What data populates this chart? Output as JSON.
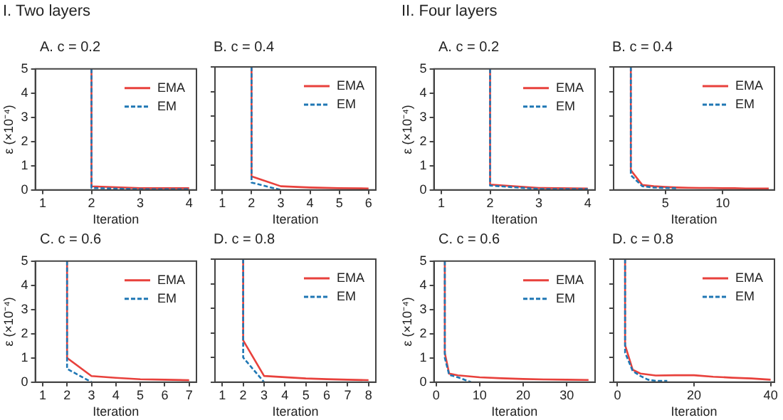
{
  "chart_data": [
    {
      "type": "line",
      "title": "A. c = 0.2",
      "annotations": [
        "I. Two layers"
      ],
      "xlabel": "Iteration",
      "ylabel": "ε (×10⁻⁴)",
      "xlim": [
        0.85,
        4.15
      ],
      "xticks": [
        1,
        2,
        3,
        4
      ],
      "ylim": [
        0,
        5
      ],
      "yticks": [
        0,
        1,
        2,
        3,
        4,
        5
      ],
      "grid": false,
      "legend": "top right",
      "marker": "none",
      "series": [
        {
          "name": "EMA",
          "color": "#e8413c",
          "line_style": "solid",
          "x": [
            2,
            2,
            3,
            4
          ],
          "values": [
            5,
            0.15,
            0.07,
            0.07
          ]
        },
        {
          "name": "EM",
          "color": "#1f77b4",
          "line_style": "dashed",
          "x": [
            2,
            2,
            3,
            4
          ],
          "values": [
            5,
            0.08,
            0.03,
            0.03
          ]
        }
      ]
    },
    {
      "type": "line",
      "title": "B. c = 0.4",
      "xlabel": "Iteration",
      "xlim": [
        0.75,
        6.25
      ],
      "xticks": [
        1,
        2,
        3,
        4,
        5,
        6
      ],
      "ylim": [
        0,
        5
      ],
      "yticks": [
        0,
        1,
        2,
        3,
        4,
        5
      ],
      "tick_labels": "x",
      "grid": false,
      "legend": "top right",
      "marker": "none",
      "series": [
        {
          "name": "EMA",
          "color": "#e8413c",
          "line_style": "solid",
          "x": [
            2,
            2,
            3,
            4,
            5,
            6
          ],
          "values": [
            5,
            0.55,
            0.15,
            0.1,
            0.07,
            0.06
          ]
        },
        {
          "name": "EM",
          "color": "#1f77b4",
          "line_style": "dashed",
          "x": [
            2,
            2,
            3
          ],
          "values": [
            5,
            0.3,
            0
          ]
        }
      ]
    },
    {
      "type": "line",
      "title": "C. c = 0.6",
      "xlabel": "Iteration",
      "ylabel": "ε (×10⁻⁴)",
      "xlim": [
        0.7,
        7.3
      ],
      "xticks": [
        1,
        2,
        3,
        4,
        5,
        6,
        7
      ],
      "ylim": [
        0,
        5
      ],
      "yticks": [
        0,
        1,
        2,
        3,
        4,
        5
      ],
      "grid": false,
      "legend": "top right",
      "marker": "none",
      "series": [
        {
          "name": "EMA",
          "color": "#e8413c",
          "line_style": "solid",
          "x": [
            2,
            2,
            3,
            4,
            5,
            6,
            7
          ],
          "values": [
            5,
            1.0,
            0.25,
            0.18,
            0.12,
            0.1,
            0.08
          ]
        },
        {
          "name": "EM",
          "color": "#1f77b4",
          "line_style": "dashed",
          "x": [
            2,
            2,
            3
          ],
          "values": [
            5,
            0.55,
            0
          ]
        }
      ]
    },
    {
      "type": "line",
      "title": "D. c = 0.8",
      "xlabel": "Iteration",
      "xlim": [
        0.65,
        8.35
      ],
      "xticks": [
        1,
        2,
        3,
        4,
        5,
        6,
        7,
        8
      ],
      "ylim": [
        0,
        5
      ],
      "yticks": [
        0,
        1,
        2,
        3,
        4,
        5
      ],
      "tick_labels": "x",
      "grid": false,
      "legend": "top right",
      "marker": "none",
      "series": [
        {
          "name": "EMA",
          "color": "#e8413c",
          "line_style": "solid",
          "x": [
            2,
            2,
            3,
            4,
            5,
            6,
            7,
            8
          ],
          "values": [
            5,
            1.7,
            0.25,
            0.2,
            0.15,
            0.12,
            0.1,
            0.08
          ]
        },
        {
          "name": "EM",
          "color": "#1f77b4",
          "line_style": "dashed",
          "x": [
            2,
            2,
            3
          ],
          "values": [
            5,
            1.0,
            0
          ]
        }
      ]
    },
    {
      "type": "line",
      "title": "A. c = 0.2",
      "annotations": [
        "II. Four layers"
      ],
      "xlabel": "Iteration",
      "ylabel": "ε (×10⁻⁴)",
      "xlim": [
        0.85,
        4.15
      ],
      "xticks": [
        1,
        2,
        3,
        4
      ],
      "ylim": [
        0,
        5
      ],
      "yticks": [
        0,
        1,
        2,
        3,
        4,
        5
      ],
      "grid": false,
      "legend": "top right",
      "marker": "none",
      "series": [
        {
          "name": "EMA",
          "color": "#e8413c",
          "line_style": "solid",
          "x": [
            2,
            2,
            3,
            4
          ],
          "values": [
            5,
            0.22,
            0.08,
            0.06
          ]
        },
        {
          "name": "EM",
          "color": "#1f77b4",
          "line_style": "dashed",
          "x": [
            2,
            2,
            3,
            4
          ],
          "values": [
            5,
            0.18,
            0.04,
            0.04
          ]
        }
      ]
    },
    {
      "type": "line",
      "title": "B. c = 0.4",
      "xlabel": "Iteration",
      "xlim": [
        0.5,
        14.5
      ],
      "xticks": [
        5,
        10
      ],
      "ylim": [
        0,
        5
      ],
      "yticks": [
        0,
        1,
        2,
        3,
        4,
        5
      ],
      "tick_labels": "x",
      "grid": false,
      "legend": "top right",
      "marker": "none",
      "series": [
        {
          "name": "EMA",
          "color": "#e8413c",
          "line_style": "solid",
          "x": [
            2,
            2,
            3,
            4,
            5,
            6,
            7,
            8,
            9,
            10,
            11,
            12,
            13,
            14
          ],
          "values": [
            5,
            0.8,
            0.2,
            0.15,
            0.12,
            0.1,
            0.09,
            0.08,
            0.08,
            0.07,
            0.07,
            0.06,
            0.06,
            0.06
          ]
        },
        {
          "name": "EM",
          "color": "#1f77b4",
          "line_style": "dashed",
          "x": [
            2,
            2,
            3,
            4,
            5,
            6
          ],
          "values": [
            5,
            0.6,
            0.15,
            0.1,
            0.08,
            0.07
          ]
        }
      ]
    },
    {
      "type": "line",
      "title": "C. c = 0.6",
      "xlabel": "Iteration",
      "ylabel": "ε (×10⁻⁴)",
      "xlim": [
        -0.5,
        36.5
      ],
      "xticks": [
        0,
        10,
        20,
        30
      ],
      "ylim": [
        0,
        5
      ],
      "yticks": [
        0,
        1,
        2,
        3,
        4,
        5
      ],
      "grid": false,
      "legend": "top right",
      "marker": "none",
      "series": [
        {
          "name": "EMA",
          "color": "#e8413c",
          "line_style": "solid",
          "x": [
            2,
            2,
            3,
            5,
            10,
            15,
            20,
            25,
            30,
            35
          ],
          "values": [
            5,
            1.2,
            0.35,
            0.28,
            0.2,
            0.16,
            0.13,
            0.11,
            0.1,
            0.09
          ]
        },
        {
          "name": "EM",
          "color": "#1f77b4",
          "line_style": "dashed",
          "x": [
            2,
            2,
            3,
            5,
            8
          ],
          "values": [
            5,
            1.0,
            0.3,
            0.2,
            0
          ]
        }
      ]
    },
    {
      "type": "line",
      "title": "D. c = 0.8",
      "xlabel": "Iteration",
      "xlim": [
        -1,
        41
      ],
      "xticks": [
        0,
        20,
        40
      ],
      "ylim": [
        0,
        5
      ],
      "yticks": [
        0,
        1,
        2,
        3,
        4,
        5
      ],
      "tick_labels": "x",
      "grid": false,
      "legend": "top right",
      "marker": "none",
      "series": [
        {
          "name": "EMA",
          "color": "#e8413c",
          "line_style": "solid",
          "x": [
            2,
            2,
            4,
            6,
            10,
            15,
            20,
            25,
            30,
            35,
            40
          ],
          "values": [
            5,
            1.5,
            0.5,
            0.35,
            0.27,
            0.28,
            0.28,
            0.22,
            0.18,
            0.15,
            0.1
          ]
        },
        {
          "name": "EM",
          "color": "#1f77b4",
          "line_style": "dashed",
          "x": [
            2,
            2,
            4,
            6,
            8,
            10,
            13
          ],
          "values": [
            5,
            1.2,
            0.45,
            0.25,
            0.1,
            0.05,
            0.05
          ]
        }
      ]
    }
  ]
}
